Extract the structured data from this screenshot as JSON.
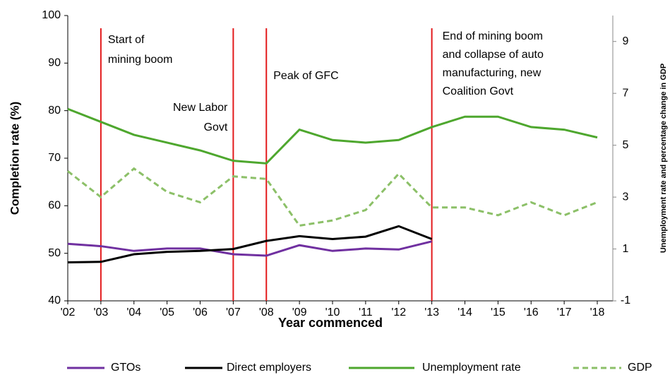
{
  "chart_data": {
    "type": "line",
    "categories": [
      "'02",
      "'03",
      "'04",
      "'05",
      "'06",
      "'07",
      "'08",
      "'09",
      "'10",
      "'11",
      "'12",
      "'13",
      "'14",
      "'15",
      "'16",
      "'17",
      "'18"
    ],
    "xlabel": "Year commenced",
    "ylabel": "Completion rate (%)",
    "y2label": "Unemployment rate and percentage change in GDP",
    "ylim": [
      40,
      100
    ],
    "yticks": [
      40,
      50,
      60,
      70,
      80,
      90,
      100
    ],
    "y2lim": [
      -1,
      10
    ],
    "y2ticks": [
      -1,
      1,
      3,
      5,
      7,
      9
    ],
    "grid": false,
    "legend": "bottom",
    "series": [
      {
        "name": "GTOs",
        "color": "#7030a0",
        "dash": false,
        "values": [
          52.0,
          51.5,
          50.5,
          51.0,
          51.0,
          49.8,
          49.5,
          51.7,
          50.5,
          51.0,
          50.8,
          52.5,
          null,
          null,
          null,
          null,
          null
        ]
      },
      {
        "name": "Direct employers",
        "color": "#000000",
        "dash": false,
        "values": [
          48.1,
          48.2,
          49.8,
          50.3,
          50.5,
          50.9,
          52.6,
          53.6,
          53.0,
          53.5,
          55.7,
          53.0,
          null,
          null,
          null,
          null,
          null
        ]
      },
      {
        "name": "Unemployment rate",
        "color": "#4ea72e",
        "dash": false,
        "axis": "y2",
        "values": [
          6.4,
          5.9,
          5.4,
          5.1,
          4.8,
          4.4,
          4.3,
          5.6,
          5.2,
          5.1,
          5.2,
          5.7,
          6.1,
          6.1,
          5.7,
          5.6,
          5.3
        ]
      },
      {
        "name": "GDP",
        "color": "#8cc068",
        "dash": true,
        "axis": "y2",
        "values": [
          4.0,
          3.0,
          4.1,
          3.2,
          2.8,
          3.8,
          3.7,
          1.9,
          2.1,
          2.5,
          3.9,
          2.6,
          2.6,
          2.3,
          2.8,
          2.3,
          2.8
        ]
      }
    ],
    "events": [
      {
        "x": "'03",
        "label": [
          "Start of",
          "mining boom"
        ]
      },
      {
        "x": "'07",
        "label": [
          "New Labor",
          "Govt"
        ]
      },
      {
        "x": "'08",
        "label": [
          "Peak of GFC"
        ]
      },
      {
        "x": "'13",
        "label": [
          "End of  mining boom",
          "and collapse of auto",
          "manufacturing, new",
          "Coalition Govt"
        ]
      }
    ]
  }
}
